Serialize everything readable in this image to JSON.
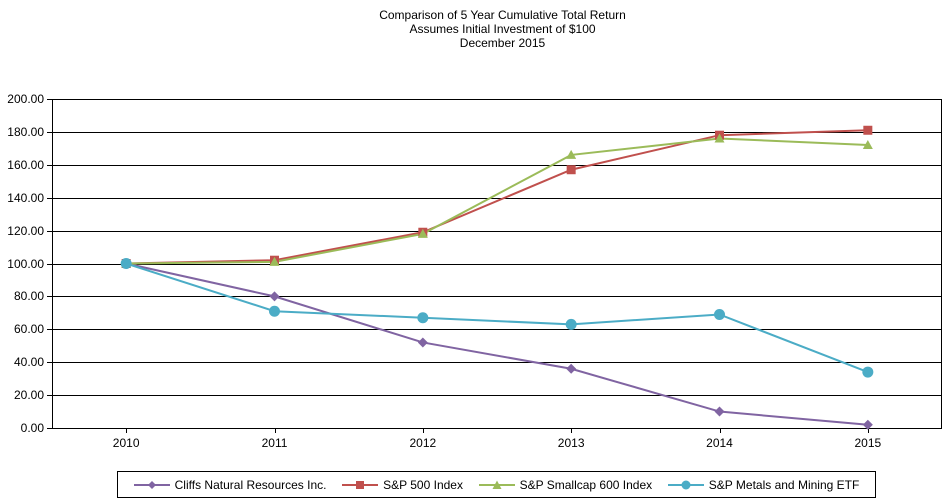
{
  "title": {
    "line1": "Comparison of 5 Year Cumulative  Total Return",
    "line2": "Assumes Initial Investment  of $100",
    "line3": "December 2015"
  },
  "chart_data": {
    "type": "line",
    "categories": [
      "2010",
      "2011",
      "2012",
      "2013",
      "2014",
      "2015"
    ],
    "series": [
      {
        "name": "Cliffs Natural Resources  Inc.",
        "marker": "diamond",
        "color": "#8064A2",
        "values": [
          100,
          80,
          52,
          36,
          10,
          2
        ]
      },
      {
        "name": "S&P 500 Index",
        "marker": "square",
        "color": "#C0504D",
        "values": [
          100,
          102,
          119,
          157,
          178,
          181
        ]
      },
      {
        "name": "S&P Smallcap 600 Index",
        "marker": "triangle",
        "color": "#9BBB59",
        "values": [
          100,
          101,
          118,
          166,
          176,
          172
        ]
      },
      {
        "name": "S&P Metals and Mining ETF",
        "marker": "circle",
        "color": "#4BACC6",
        "values": [
          100,
          71,
          67,
          63,
          69,
          34
        ]
      }
    ],
    "xlabel": "",
    "ylabel": "",
    "ylim": [
      0,
      200
    ],
    "y_tick_step": 20,
    "y_tick_labels": [
      "0.00",
      "20.00",
      "40.00",
      "60.00",
      "80.00",
      "100.00",
      "120.00",
      "140.00",
      "160.00",
      "180.00",
      "200.00"
    ],
    "grid": true,
    "legend_position": "bottom",
    "axis_color": "#000000",
    "grid_color": "#000000",
    "background": "#ffffff"
  }
}
